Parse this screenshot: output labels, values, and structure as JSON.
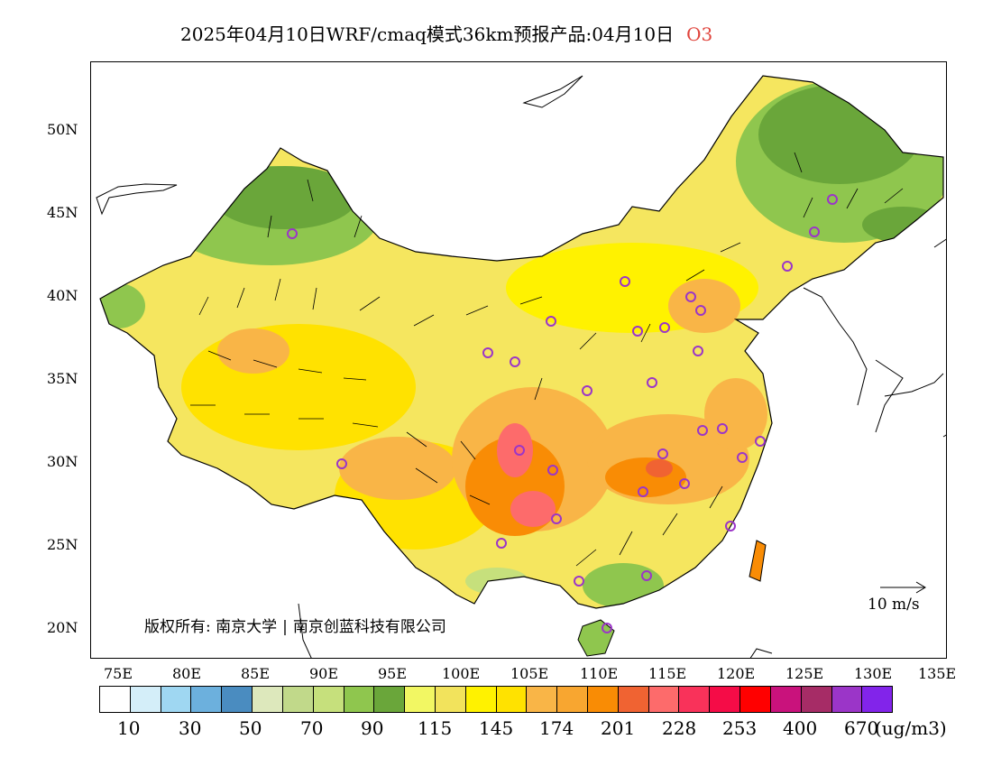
{
  "title": {
    "main": "2025年04月10日WRF/cmaq模式36km预报产品:04月10日",
    "pollutant": "O3"
  },
  "axes": {
    "lat_labels": [
      "50N",
      "45N",
      "40N",
      "35N",
      "30N",
      "25N",
      "20N"
    ],
    "lon_labels": [
      "75E",
      "80E",
      "85E",
      "90E",
      "95E",
      "100E",
      "105E",
      "110E",
      "115E",
      "120E",
      "125E",
      "130E",
      "135E"
    ]
  },
  "copyright": {
    "prefix": "版权所有:",
    "org1": "南京大学",
    "org2": "南京创蓝科技有限公司"
  },
  "wind_scale": {
    "label": "10 m/s",
    "icon": "arrow-right-icon"
  },
  "legend": {
    "colors": [
      "#ffffff",
      "#d4eef9",
      "#9fd7f2",
      "#6cb0dd",
      "#4a8cc0",
      "#dde8bc",
      "#c1d98a",
      "#c6e07c",
      "#8fc64e",
      "#6aa63a",
      "#f2f763",
      "#f2e35c",
      "#fff200",
      "#ffe200",
      "#f9b547",
      "#f8a630",
      "#f98c05",
      "#f06332",
      "#fd6b6b",
      "#f9325a",
      "#f50c47",
      "#ff0000",
      "#c9127c",
      "#a62c66",
      "#9b35c8",
      "#8224ea"
    ],
    "labels": [
      "10",
      "30",
      "50",
      "70",
      "90",
      "115",
      "145",
      "174",
      "201",
      "228",
      "253",
      "400",
      "670"
    ],
    "unit": "(ug/m3)"
  }
}
